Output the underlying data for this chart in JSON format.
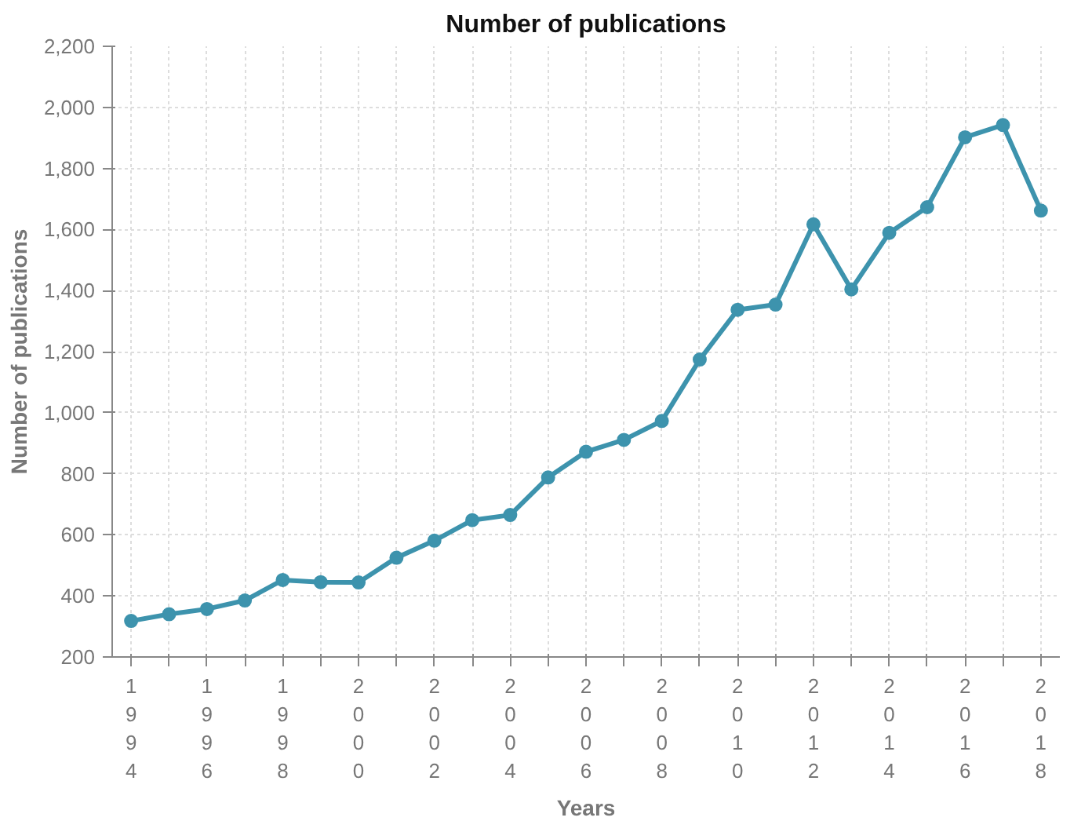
{
  "chart_data": {
    "type": "line",
    "title": "Number of publications",
    "xlabel": "Years",
    "ylabel": "Number of publications",
    "x": [
      1994,
      1995,
      1996,
      1997,
      1998,
      1999,
      2000,
      2001,
      2002,
      2003,
      2004,
      2005,
      2006,
      2007,
      2008,
      2009,
      2010,
      2011,
      2012,
      2013,
      2014,
      2015,
      2016,
      2017,
      2018
    ],
    "series": [
      {
        "color": "#3d93ad",
        "values": [
          318,
          340,
          357,
          385,
          452,
          445,
          444,
          525,
          581,
          648,
          665,
          788,
          872,
          911,
          973,
          1174,
          1337,
          1354,
          1617,
          1404,
          1589,
          1673,
          1902,
          1942,
          1662
        ]
      }
    ],
    "xlim": [
      1993.5,
      2018.5
    ],
    "xticks": [
      {
        "value": 1994,
        "label": "1994"
      },
      {
        "value": 1995,
        "label": null
      },
      {
        "value": 1996,
        "label": "1996"
      },
      {
        "value": 1997,
        "label": null
      },
      {
        "value": 1998,
        "label": "1998"
      },
      {
        "value": 1999,
        "label": null
      },
      {
        "value": 2000,
        "label": "2000"
      },
      {
        "value": 2001,
        "label": null
      },
      {
        "value": 2002,
        "label": "2002"
      },
      {
        "value": 2003,
        "label": null
      },
      {
        "value": 2004,
        "label": "2004"
      },
      {
        "value": 2005,
        "label": null
      },
      {
        "value": 2006,
        "label": "2006"
      },
      {
        "value": 2007,
        "label": null
      },
      {
        "value": 2008,
        "label": "2008"
      },
      {
        "value": 2009,
        "label": null
      },
      {
        "value": 2010,
        "label": "2010"
      },
      {
        "value": 2011,
        "label": null
      },
      {
        "value": 2012,
        "label": "2012"
      },
      {
        "value": 2013,
        "label": null
      },
      {
        "value": 2014,
        "label": "2014"
      },
      {
        "value": 2015,
        "label": null
      },
      {
        "value": 2016,
        "label": "2016"
      },
      {
        "value": 2017,
        "label": null
      },
      {
        "value": 2018,
        "label": "2018"
      }
    ],
    "ylim": [
      200,
      2200
    ],
    "yticks": [
      {
        "value": 200,
        "label": "200"
      },
      {
        "value": 400,
        "label": "400"
      },
      {
        "value": 600,
        "label": "600"
      },
      {
        "value": 800,
        "label": "800"
      },
      {
        "value": 1000,
        "label": "1,000"
      },
      {
        "value": 1200,
        "label": "1,200"
      },
      {
        "value": 1400,
        "label": "1,400"
      },
      {
        "value": 1600,
        "label": "1,600"
      },
      {
        "value": 1800,
        "label": "1,800"
      },
      {
        "value": 2000,
        "label": "2,000"
      },
      {
        "value": 2200,
        "label": "2,200"
      }
    ],
    "grid": true,
    "marker": "circle",
    "line_style": "solid"
  }
}
